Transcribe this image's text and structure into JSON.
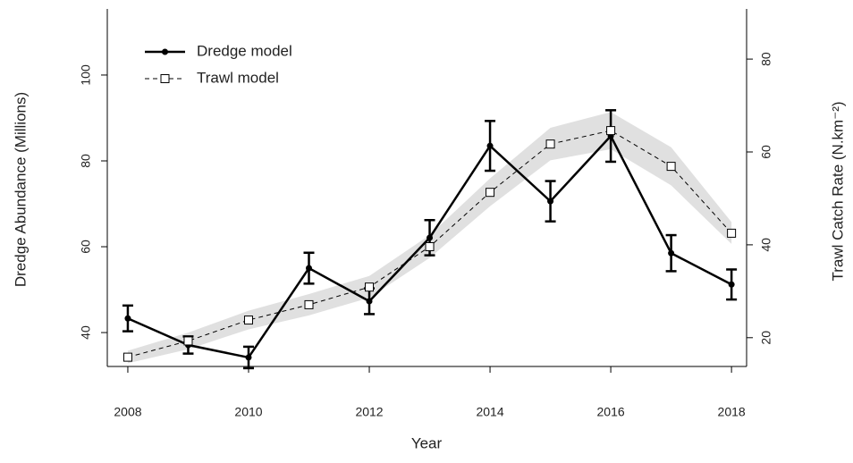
{
  "chart_data": {
    "type": "line",
    "x": [
      2008,
      2009,
      2010,
      2011,
      2012,
      2013,
      2014,
      2015,
      2016,
      2017,
      2018
    ],
    "xlabel": "Year",
    "ylabel": "Dredge Abundance (Millions)",
    "y2label": "Trawl Catch Rate (N.km⁻²)",
    "xlim": [
      2007.66,
      2018.25
    ],
    "xticks": [
      2008,
      2010,
      2012,
      2014,
      2016,
      2018
    ],
    "ylim": [
      32.1,
      115.4
    ],
    "yticks": [
      40,
      60,
      80,
      100
    ],
    "y2lim": [
      13.8,
      90.8
    ],
    "y2ticks": [
      20,
      40,
      60,
      80
    ],
    "legend": "top-left",
    "series": [
      {
        "name": "Dredge model",
        "color": "#000000",
        "axis": "y",
        "values": [
          43.3,
          37.1,
          34.2,
          55,
          47.3,
          62.1,
          83.5,
          70.6,
          85.8,
          58.5,
          51.2
        ],
        "errors": [
          3,
          2,
          2.5,
          3.6,
          3,
          4.1,
          5.8,
          4.7,
          6,
          4.2,
          3.5
        ]
      },
      {
        "name": "Trawl model",
        "color": "#000000",
        "axis": "y2",
        "band_color": "#e0e0e0",
        "values": [
          15.8,
          19.3,
          23.8,
          27.1,
          30.9,
          39.6,
          51.3,
          61.7,
          64.6,
          56.9,
          42.5
        ],
        "ci_lower": [
          14.5,
          17.5,
          21.8,
          24.8,
          28.6,
          37.2,
          48.3,
          58.2,
          60.6,
          52.8,
          40.2
        ],
        "ci_upper": [
          17.2,
          21.1,
          25.8,
          29.4,
          33.3,
          42.1,
          54.3,
          65.2,
          68.6,
          61,
          44.9
        ]
      }
    ]
  }
}
